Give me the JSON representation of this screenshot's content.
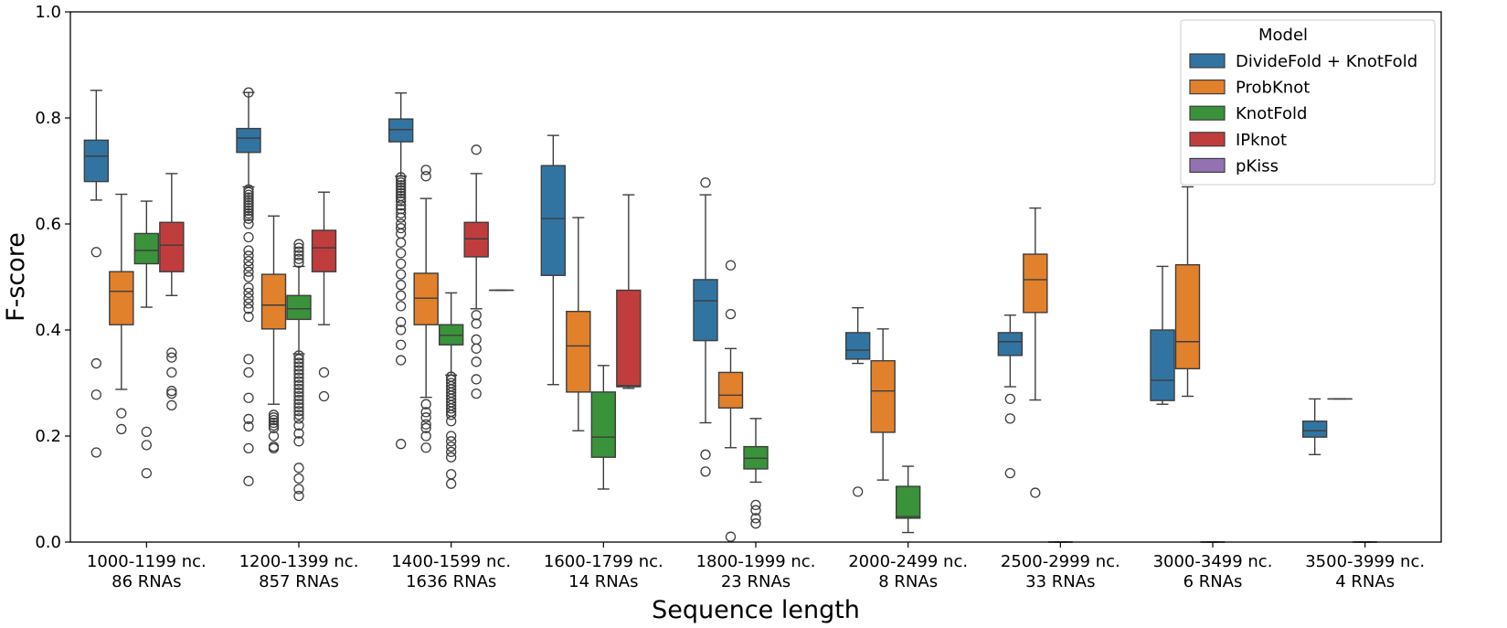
{
  "chart_data": {
    "type": "box",
    "xlabel": "Sequence length",
    "ylabel": "F-score",
    "ylim": [
      0.0,
      1.0
    ],
    "yticks": [
      0.0,
      0.2,
      0.4,
      0.6,
      0.8,
      1.0
    ],
    "ytick_labels": [
      "0.0",
      "0.2",
      "0.4",
      "0.6",
      "0.8",
      "1.0"
    ],
    "grid": false,
    "legend": {
      "title": "Model",
      "placement": "top-right",
      "entries": [
        "DivideFold + KnotFold",
        "ProbKnot",
        "KnotFold",
        "IPknot",
        "pKiss"
      ]
    },
    "categories": [
      {
        "line1": "1000-1199 nc.",
        "line2": "86 RNAs"
      },
      {
        "line1": "1200-1399 nc.",
        "line2": "857 RNAs"
      },
      {
        "line1": "1400-1599 nc.",
        "line2": "1636 RNAs"
      },
      {
        "line1": "1600-1799 nc.",
        "line2": "14 RNAs"
      },
      {
        "line1": "1800-1999 nc.",
        "line2": "23 RNAs"
      },
      {
        "line1": "2000-2499 nc.",
        "line2": "8 RNAs"
      },
      {
        "line1": "2500-2999 nc.",
        "line2": "33 RNAs"
      },
      {
        "line1": "3000-3499 nc.",
        "line2": "6 RNAs"
      },
      {
        "line1": "3500-3999 nc.",
        "line2": "4 RNAs"
      }
    ],
    "series": [
      {
        "name": "DivideFold + KnotFold",
        "color": "#3274a1",
        "boxes": [
          {
            "min": 0.645,
            "q1": 0.68,
            "median": 0.728,
            "q3": 0.758,
            "max": 0.852,
            "outliers": [
              0.547,
              0.337,
              0.278,
              0.169
            ]
          },
          {
            "min": 0.67,
            "q1": 0.735,
            "median": 0.762,
            "q3": 0.78,
            "max": 0.848,
            "outliers": [
              0.848,
              0.665,
              0.66,
              0.655,
              0.65,
              0.645,
              0.64,
              0.635,
              0.63,
              0.625,
              0.62,
              0.615,
              0.61,
              0.6,
              0.575,
              0.55,
              0.54,
              0.53,
              0.52,
              0.51,
              0.5,
              0.48,
              0.47,
              0.46,
              0.45,
              0.44,
              0.425,
              0.345,
              0.32,
              0.272,
              0.232,
              0.218,
              0.177,
              0.115
            ]
          },
          {
            "min": 0.69,
            "q1": 0.755,
            "median": 0.778,
            "q3": 0.798,
            "max": 0.847,
            "outliers": [
              0.688,
              0.683,
              0.678,
              0.673,
              0.668,
              0.663,
              0.658,
              0.653,
              0.648,
              0.643,
              0.635,
              0.628,
              0.62,
              0.612,
              0.6,
              0.592,
              0.582,
              0.565,
              0.545,
              0.525,
              0.505,
              0.485,
              0.465,
              0.445,
              0.415,
              0.4,
              0.372,
              0.343,
              0.185
            ]
          },
          {
            "min": 0.297,
            "q1": 0.503,
            "median": 0.61,
            "q3": 0.71,
            "max": 0.767,
            "outliers": []
          },
          {
            "min": 0.225,
            "q1": 0.38,
            "median": 0.455,
            "q3": 0.495,
            "max": 0.655,
            "outliers": [
              0.678,
              0.165,
              0.133
            ]
          },
          {
            "min": 0.337,
            "q1": 0.345,
            "median": 0.362,
            "q3": 0.395,
            "max": 0.442,
            "outliers": [
              0.095
            ]
          },
          {
            "min": 0.293,
            "q1": 0.352,
            "median": 0.378,
            "q3": 0.395,
            "max": 0.428,
            "outliers": [
              0.27,
              0.233,
              0.13
            ]
          },
          {
            "min": 0.26,
            "q1": 0.267,
            "median": 0.305,
            "q3": 0.4,
            "max": 0.52,
            "outliers": []
          },
          {
            "min": 0.165,
            "q1": 0.198,
            "median": 0.21,
            "q3": 0.228,
            "max": 0.27,
            "outliers": []
          }
        ]
      },
      {
        "name": "ProbKnot",
        "color": "#e1812c",
        "boxes": [
          {
            "min": 0.288,
            "q1": 0.41,
            "median": 0.473,
            "q3": 0.51,
            "max": 0.656,
            "outliers": [
              0.243,
              0.213
            ]
          },
          {
            "min": 0.26,
            "q1": 0.402,
            "median": 0.447,
            "q3": 0.505,
            "max": 0.615,
            "outliers": [
              0.24,
              0.235,
              0.23,
              0.225,
              0.22,
              0.215,
              0.2,
              0.18,
              0.177
            ]
          },
          {
            "min": 0.273,
            "q1": 0.41,
            "median": 0.46,
            "q3": 0.507,
            "max": 0.648,
            "outliers": [
              0.702,
              0.69,
              0.26,
              0.245,
              0.235,
              0.222,
              0.215,
              0.2,
              0.178
            ]
          },
          {
            "min": 0.21,
            "q1": 0.283,
            "median": 0.37,
            "q3": 0.435,
            "max": 0.612,
            "outliers": []
          },
          {
            "min": 0.178,
            "q1": 0.253,
            "median": 0.277,
            "q3": 0.32,
            "max": 0.365,
            "outliers": [
              0.522,
              0.43,
              0.01
            ]
          },
          {
            "min": 0.117,
            "q1": 0.207,
            "median": 0.285,
            "q3": 0.342,
            "max": 0.402,
            "outliers": []
          },
          {
            "min": 0.268,
            "q1": 0.433,
            "median": 0.495,
            "q3": 0.543,
            "max": 0.63,
            "outliers": [
              0.093
            ]
          },
          {
            "min": 0.275,
            "q1": 0.327,
            "median": 0.378,
            "q3": 0.523,
            "max": 0.67,
            "outliers": []
          },
          {
            "min": 0.27,
            "q1": 0.27,
            "median": 0.27,
            "q3": 0.27,
            "max": 0.27,
            "outliers": []
          }
        ]
      },
      {
        "name": "KnotFold",
        "color": "#3a923a",
        "boxes": [
          {
            "min": 0.443,
            "q1": 0.525,
            "median": 0.55,
            "q3": 0.582,
            "max": 0.643,
            "outliers": [
              0.208,
              0.183,
              0.13
            ]
          },
          {
            "min": 0.355,
            "q1": 0.42,
            "median": 0.44,
            "q3": 0.465,
            "max": 0.52,
            "outliers": [
              0.562,
              0.555,
              0.548,
              0.541,
              0.534,
              0.527,
              0.352,
              0.345,
              0.338,
              0.331,
              0.324,
              0.317,
              0.31,
              0.303,
              0.296,
              0.289,
              0.282,
              0.275,
              0.268,
              0.261,
              0.254,
              0.247,
              0.24,
              0.233,
              0.22,
              0.205,
              0.19,
              0.14,
              0.12,
              0.1,
              0.087
            ]
          },
          {
            "min": 0.315,
            "q1": 0.372,
            "median": 0.39,
            "q3": 0.41,
            "max": 0.47,
            "outliers": [
              0.312,
              0.306,
              0.3,
              0.294,
              0.288,
              0.282,
              0.276,
              0.27,
              0.264,
              0.258,
              0.252,
              0.246,
              0.24,
              0.228,
              0.2,
              0.19,
              0.18,
              0.17,
              0.16,
              0.128,
              0.11
            ]
          },
          {
            "min": 0.1,
            "q1": 0.16,
            "median": 0.198,
            "q3": 0.283,
            "max": 0.333,
            "outliers": []
          },
          {
            "min": 0.113,
            "q1": 0.138,
            "median": 0.158,
            "q3": 0.18,
            "max": 0.233,
            "outliers": [
              0.07,
              0.06,
              0.045,
              0.035
            ]
          },
          {
            "min": 0.018,
            "q1": 0.045,
            "median": 0.048,
            "q3": 0.105,
            "max": 0.143,
            "outliers": []
          },
          {
            "min": 0.0,
            "q1": 0.0,
            "median": 0.0,
            "q3": 0.0,
            "max": 0.0,
            "outliers": []
          },
          {
            "min": 0.0,
            "q1": 0.0,
            "median": 0.0,
            "q3": 0.0,
            "max": 0.0,
            "outliers": []
          },
          {
            "min": 0.0,
            "q1": 0.0,
            "median": 0.0,
            "q3": 0.0,
            "max": 0.0,
            "outliers": []
          }
        ]
      },
      {
        "name": "IPknot",
        "color": "#c03d3e",
        "boxes": [
          {
            "min": 0.465,
            "q1": 0.51,
            "median": 0.56,
            "q3": 0.603,
            "max": 0.695,
            "outliers": [
              0.357,
              0.348,
              0.32,
              0.285,
              0.28,
              0.258
            ]
          },
          {
            "min": 0.41,
            "q1": 0.51,
            "median": 0.555,
            "q3": 0.588,
            "max": 0.66,
            "outliers": [
              0.32,
              0.275
            ]
          },
          {
            "min": 0.44,
            "q1": 0.538,
            "median": 0.572,
            "q3": 0.603,
            "max": 0.695,
            "outliers": [
              0.74,
              0.428,
              0.412,
              0.382,
              0.365,
              0.34,
              0.307,
              0.28
            ]
          },
          {
            "min": 0.29,
            "q1": 0.293,
            "median": 0.295,
            "q3": 0.475,
            "max": 0.655,
            "outliers": []
          },
          null,
          null,
          null,
          null,
          null
        ]
      },
      {
        "name": "pKiss",
        "color": "#9372b2",
        "boxes": [
          null,
          null,
          {
            "min": 0.475,
            "q1": 0.475,
            "median": 0.475,
            "q3": 0.475,
            "max": 0.475,
            "outliers": []
          },
          null,
          null,
          null,
          null,
          null,
          null
        ]
      }
    ]
  }
}
